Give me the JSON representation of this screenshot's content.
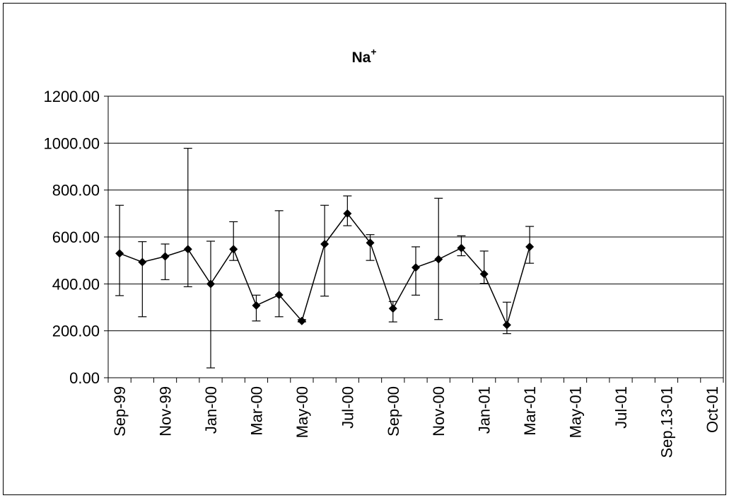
{
  "chart_data": {
    "type": "line",
    "title": "Na",
    "title_superscript": "+",
    "xlabel": "",
    "ylabel": "",
    "ylim": [
      0,
      1200
    ],
    "yticks": [
      "0.00",
      "200.00",
      "400.00",
      "600.00",
      "800.00",
      "1000.00",
      "1200.00"
    ],
    "grid": true,
    "legend": "none",
    "x_slot_count": 27,
    "x_tick_labels": [
      {
        "slot": 0,
        "label": "Sep-99"
      },
      {
        "slot": 2,
        "label": "Nov-99"
      },
      {
        "slot": 4,
        "label": "Jan-00"
      },
      {
        "slot": 6,
        "label": "Mar-00"
      },
      {
        "slot": 8,
        "label": "May-00"
      },
      {
        "slot": 10,
        "label": "Jul-00"
      },
      {
        "slot": 12,
        "label": "Sep-00"
      },
      {
        "slot": 14,
        "label": "Nov-00"
      },
      {
        "slot": 16,
        "label": "Jan-01"
      },
      {
        "slot": 18,
        "label": "Mar-01"
      },
      {
        "slot": 20,
        "label": "May-01"
      },
      {
        "slot": 22,
        "label": "Jul-01"
      },
      {
        "slot": 24,
        "label": "Sep.13-01"
      },
      {
        "slot": 26,
        "label": "Oct-01"
      }
    ],
    "series": [
      {
        "marker": "diamond",
        "color": "#000000",
        "points": [
          {
            "slot": 0,
            "y": 530,
            "err_low": 350,
            "err_high": 735
          },
          {
            "slot": 1,
            "y": 493,
            "err_low": 260,
            "err_high": 580
          },
          {
            "slot": 2,
            "y": 517,
            "err_low": 418,
            "err_high": 570
          },
          {
            "slot": 3,
            "y": 548,
            "err_low": 388,
            "err_high": 978
          },
          {
            "slot": 4,
            "y": 400,
            "err_low": 42,
            "err_high": 582
          },
          {
            "slot": 5,
            "y": 548,
            "err_low": 500,
            "err_high": 665
          },
          {
            "slot": 6,
            "y": 308,
            "err_low": 242,
            "err_high": 352
          },
          {
            "slot": 7,
            "y": 353,
            "err_low": 260,
            "err_high": 712
          },
          {
            "slot": 8,
            "y": 242,
            "err_low": 238,
            "err_high": 248
          },
          {
            "slot": 9,
            "y": 570,
            "err_low": 348,
            "err_high": 735
          },
          {
            "slot": 10,
            "y": 700,
            "err_low": 648,
            "err_high": 775
          },
          {
            "slot": 11,
            "y": 575,
            "err_low": 500,
            "err_high": 610
          },
          {
            "slot": 12,
            "y": 295,
            "err_low": 238,
            "err_high": 325
          },
          {
            "slot": 13,
            "y": 470,
            "err_low": 352,
            "err_high": 558
          },
          {
            "slot": 14,
            "y": 505,
            "err_low": 248,
            "err_high": 765
          },
          {
            "slot": 15,
            "y": 553,
            "err_low": 520,
            "err_high": 605
          },
          {
            "slot": 16,
            "y": 442,
            "err_low": 402,
            "err_high": 540
          },
          {
            "slot": 17,
            "y": 225,
            "err_low": 188,
            "err_high": 322
          },
          {
            "slot": 18,
            "y": 558,
            "err_low": 488,
            "err_high": 645
          }
        ]
      }
    ]
  }
}
